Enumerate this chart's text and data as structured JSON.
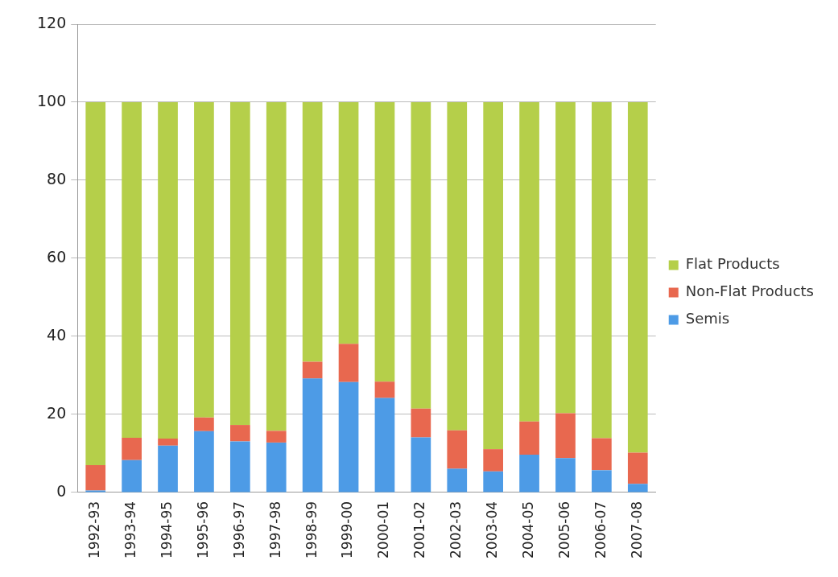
{
  "chart_data": {
    "type": "bar",
    "stacked": true,
    "categories": [
      "1992-93",
      "1993-94",
      "1994-95",
      "1995-96",
      "1996-97",
      "1997-98",
      "1998-99",
      "1999-00",
      "2000-01",
      "2001-02",
      "2002-03",
      "2003-04",
      "2004-05",
      "2005-06",
      "2006-07",
      "2007-08"
    ],
    "series": [
      {
        "name": "Semis",
        "color": "#4d9be6",
        "values": [
          0.5,
          8.3,
          12.0,
          15.7,
          13.1,
          12.8,
          29.2,
          28.3,
          24.2,
          14.1,
          6.1,
          5.4,
          9.7,
          8.8,
          5.7,
          2.2
        ]
      },
      {
        "name": "Non-Flat Products",
        "color": "#e8684f",
        "values": [
          6.5,
          5.7,
          1.8,
          3.5,
          4.2,
          3.0,
          4.3,
          9.8,
          4.2,
          7.4,
          9.8,
          5.7,
          8.5,
          11.5,
          8.2,
          8.0
        ]
      },
      {
        "name": "Flat Products",
        "color": "#b5cf4a",
        "values": [
          93.0,
          86.0,
          86.2,
          80.8,
          82.7,
          84.2,
          66.5,
          61.9,
          71.6,
          78.5,
          84.1,
          88.9,
          81.8,
          79.7,
          86.1,
          89.8
        ]
      }
    ],
    "ylim": [
      0,
      120
    ],
    "yticks": [
      0,
      20,
      40,
      60,
      80,
      100,
      120
    ],
    "grid": "y",
    "legend": "right"
  }
}
